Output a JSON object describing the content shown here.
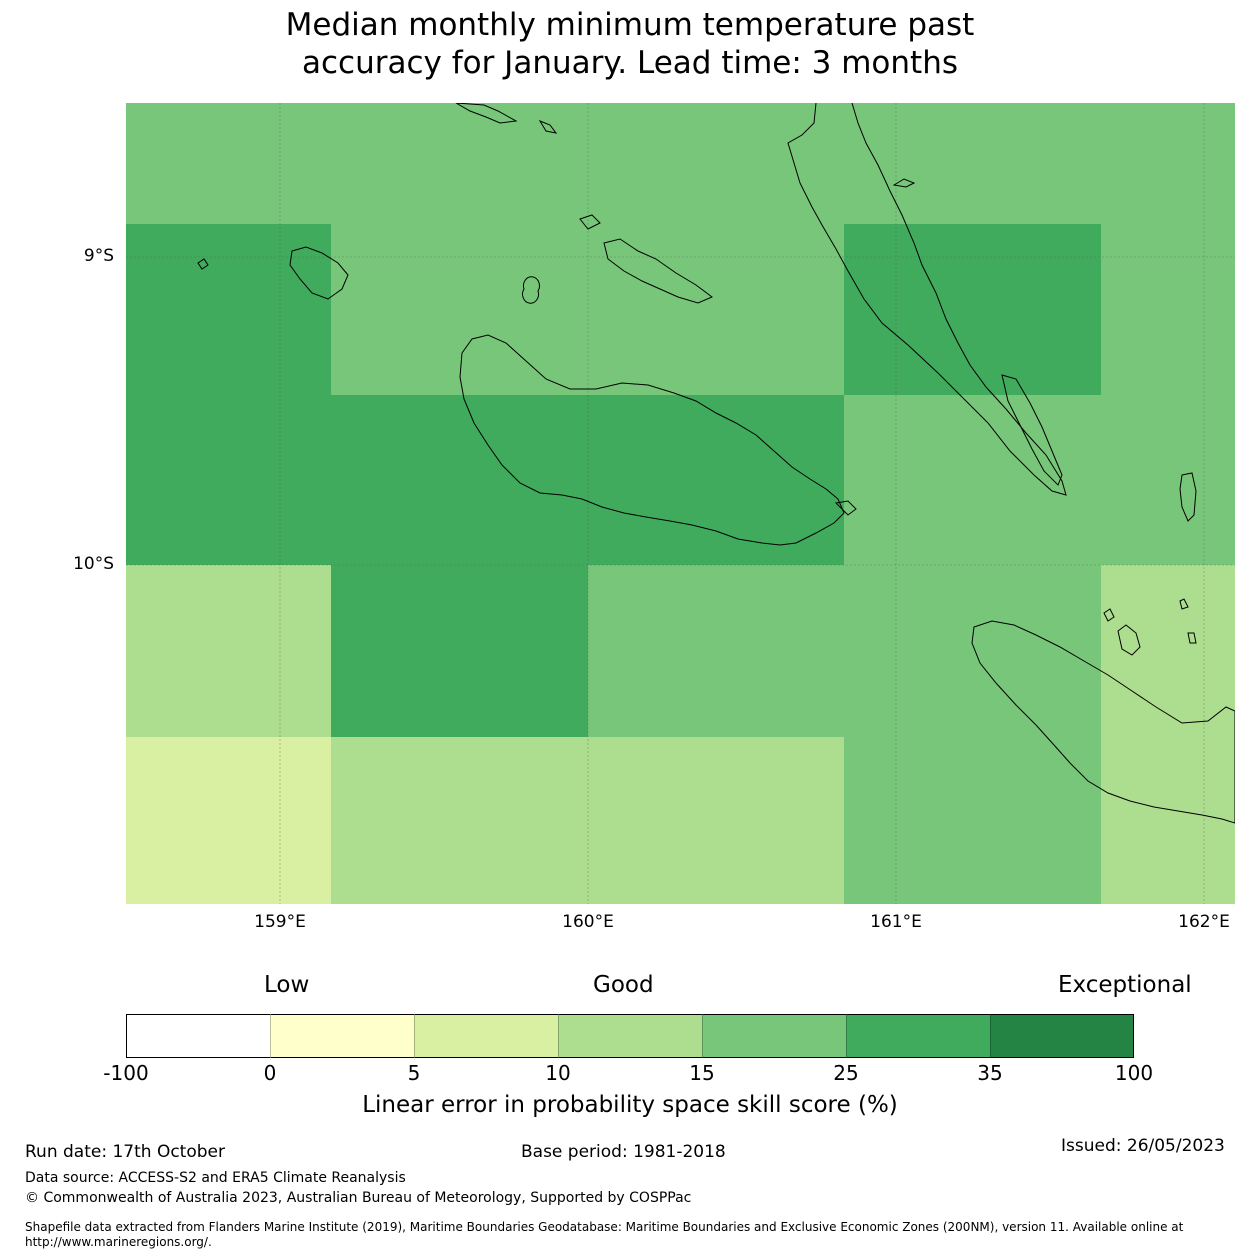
{
  "title_line1": "Median monthly minimum temperature past",
  "title_line2": "accuracy for January. Lead time: 3 months",
  "map": {
    "lat_labels": [
      "9°S",
      "10°S"
    ],
    "lon_labels": [
      "159°E",
      "160°E",
      "161°E",
      "162°E"
    ],
    "colors": {
      "c25_35": "#41ab5d",
      "c15_25": "#78c679",
      "c10_15": "#addd8e",
      "c5_10": "#d9f0a3",
      "coast": "#000000"
    },
    "grid_cells": [
      {
        "row": 0,
        "col": 0,
        "cls": "c15_25"
      },
      {
        "row": 0,
        "col": 1,
        "cls": "c15_25"
      },
      {
        "row": 0,
        "col": 2,
        "cls": "c15_25"
      },
      {
        "row": 0,
        "col": 3,
        "cls": "c15_25"
      },
      {
        "row": 0,
        "col": 4,
        "cls": "c15_25"
      },
      {
        "row": 1,
        "col": 0,
        "cls": "c25_35"
      },
      {
        "row": 1,
        "col": 1,
        "cls": "c15_25"
      },
      {
        "row": 1,
        "col": 2,
        "cls": "c15_25"
      },
      {
        "row": 1,
        "col": 3,
        "cls": "c25_35"
      },
      {
        "row": 1,
        "col": 4,
        "cls": "c15_25"
      },
      {
        "row": 2,
        "col": 0,
        "cls": "c25_35"
      },
      {
        "row": 2,
        "col": 1,
        "cls": "c25_35"
      },
      {
        "row": 2,
        "col": 2,
        "cls": "c25_35"
      },
      {
        "row": 2,
        "col": 3,
        "cls": "c15_25"
      },
      {
        "row": 2,
        "col": 4,
        "cls": "c15_25"
      },
      {
        "row": 3,
        "col": 0,
        "cls": "c10_15"
      },
      {
        "row": 3,
        "col": 1,
        "cls": "c25_35"
      },
      {
        "row": 3,
        "col": 2,
        "cls": "c15_25"
      },
      {
        "row": 3,
        "col": 3,
        "cls": "c15_25"
      },
      {
        "row": 3,
        "col": 4,
        "cls": "c10_15"
      },
      {
        "row": 4,
        "col": 0,
        "cls": "c5_10"
      },
      {
        "row": 4,
        "col": 1,
        "cls": "c10_15"
      },
      {
        "row": 4,
        "col": 2,
        "cls": "c10_15"
      },
      {
        "row": 4,
        "col": 3,
        "cls": "c15_25"
      },
      {
        "row": 4,
        "col": 4,
        "cls": "c10_15"
      }
    ]
  },
  "colorbar": {
    "categories": [
      "Low",
      "Good",
      "Exceptional"
    ],
    "ticks": [
      "-100",
      "0",
      "5",
      "10",
      "15",
      "25",
      "35",
      "100"
    ],
    "colors": [
      "#ffffff",
      "#ffffcc",
      "#d9f0a3",
      "#addd8e",
      "#78c679",
      "#41ab5d",
      "#238443"
    ],
    "title": "Linear error in probability space skill score (%)"
  },
  "footer": {
    "run_date": "Run date: 17th October",
    "base_period": "Base period: 1981-2018",
    "issued": "Issued: 26/05/2023",
    "data_source": "Data source: ACCESS-S2 and ERA5 Climate Reanalysis",
    "copyright": "© Commonwealth of Australia 2023, Australian Bureau of Meteorology, Supported by COSPPac",
    "shapefile_line1": "Shapefile data extracted from Flanders Marine Institute (2019), Maritime Boundaries Geodatabase: Maritime Boundaries and Exclusive Economic Zones (200NM), version 11. Available online at",
    "shapefile_line2": "http://www.marineregions.org/."
  }
}
